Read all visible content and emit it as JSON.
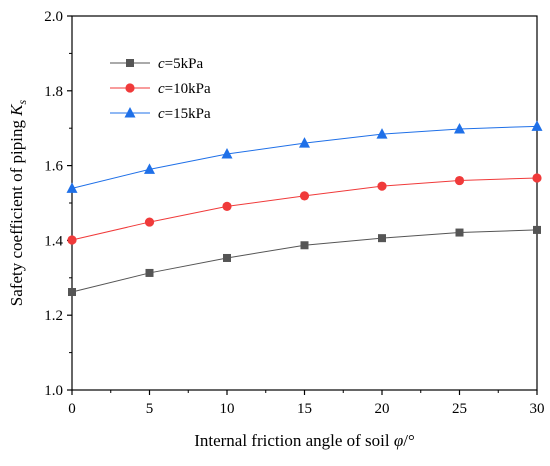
{
  "chart_data": {
    "type": "line",
    "xlabel": {
      "prefix": "Internal friction angle of soil ",
      "symbol": "φ",
      "unit": "/°"
    },
    "ylabel": {
      "prefix": "Safety coefficient of piping ",
      "symbol": "K",
      "subscript": "s"
    },
    "xlim": [
      0,
      30
    ],
    "ylim": [
      1.0,
      2.0
    ],
    "xticks": [
      "0",
      "5",
      "10",
      "15",
      "20",
      "25",
      "30"
    ],
    "yticks": [
      "1.0",
      "1.2",
      "1.4",
      "1.6",
      "1.8",
      "2.0"
    ],
    "x": [
      0,
      5,
      10,
      15,
      20,
      25,
      30
    ],
    "grid": false,
    "legend_position": "top-left",
    "series": [
      {
        "var": "c",
        "rest": "=5kPa",
        "color": "#555555",
        "marker": "square",
        "values": [
          1.262,
          1.313,
          1.353,
          1.387,
          1.406,
          1.421,
          1.428
        ]
      },
      {
        "var": "c",
        "rest": "=10kPa",
        "color": "#f03a3a",
        "marker": "circle",
        "values": [
          1.401,
          1.449,
          1.491,
          1.519,
          1.545,
          1.56,
          1.567
        ]
      },
      {
        "var": "c",
        "rest": "=15kPa",
        "color": "#1f70e8",
        "marker": "triangle",
        "values": [
          1.539,
          1.59,
          1.631,
          1.66,
          1.684,
          1.698,
          1.705
        ]
      }
    ]
  }
}
